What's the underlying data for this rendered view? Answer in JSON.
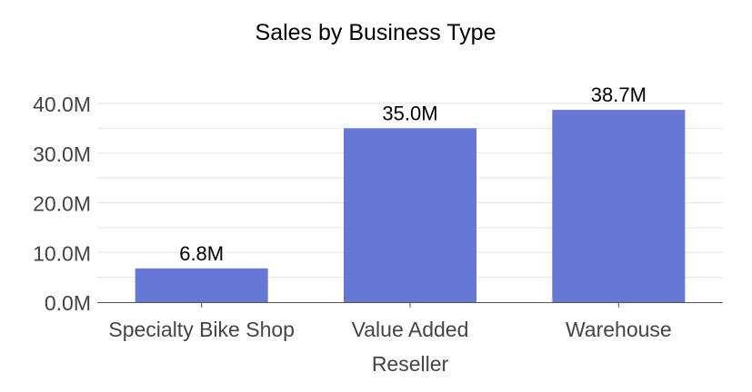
{
  "chart_data": {
    "type": "bar",
    "title": "Sales by Business Type",
    "xlabel": "",
    "ylabel": "",
    "categories": [
      "Specialty Bike Shop",
      "Value Added Reseller",
      "Warehouse"
    ],
    "values": [
      6.8,
      35.0,
      38.7
    ],
    "value_labels": [
      "6.8M",
      "35.0M",
      "38.7M"
    ],
    "unit": "M",
    "ylim": [
      0,
      40
    ],
    "y_ticks": [
      0,
      10,
      20,
      30,
      40
    ],
    "y_tick_labels": [
      "0.0M",
      "10.0M",
      "20.0M",
      "30.0M",
      "40.0M"
    ],
    "grid": true,
    "legend": "none"
  },
  "colors": {
    "bar": "#6777d4",
    "grid": "#e3e3ee",
    "axis": "#555555",
    "tick_text": "#444444",
    "label_text": "#000000"
  }
}
